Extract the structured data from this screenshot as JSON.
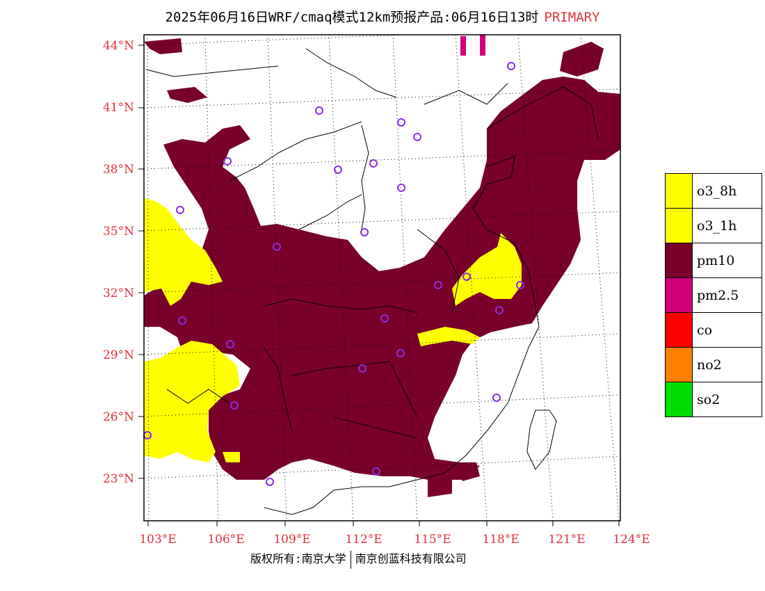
{
  "title": {
    "main": "2025年06月16日WRF/cmaq模式12km预报产品:06月16日13时",
    "tag": "PRIMARY"
  },
  "axes": {
    "lat_labels": [
      "44°N",
      "41°N",
      "38°N",
      "35°N",
      "32°N",
      "29°N",
      "26°N",
      "23°N"
    ],
    "lon_labels": [
      "103°E",
      "106°E",
      "109°E",
      "112°E",
      "115°E",
      "118°E",
      "121°E",
      "124°E"
    ]
  },
  "legend": [
    {
      "label": "o3_8h",
      "color": "#ffff00"
    },
    {
      "label": "o3_1h",
      "color": "#ffff00"
    },
    {
      "label": "pm10",
      "color": "#78002a"
    },
    {
      "label": "pm2.5",
      "color": "#d0007a"
    },
    {
      "label": "co",
      "color": "#ff0000"
    },
    {
      "label": "no2",
      "color": "#ff8000"
    },
    {
      "label": "so2",
      "color": "#00dd00"
    }
  ],
  "footer": {
    "left": "版权所有:南京大学",
    "right": "南京创蓝科技有限公司"
  },
  "colors": {
    "pm10": "#78002a",
    "o3": "#ffff00",
    "pm25": "#d0007a",
    "station": "#8a2be2",
    "axis_text": "#e0303a"
  }
}
